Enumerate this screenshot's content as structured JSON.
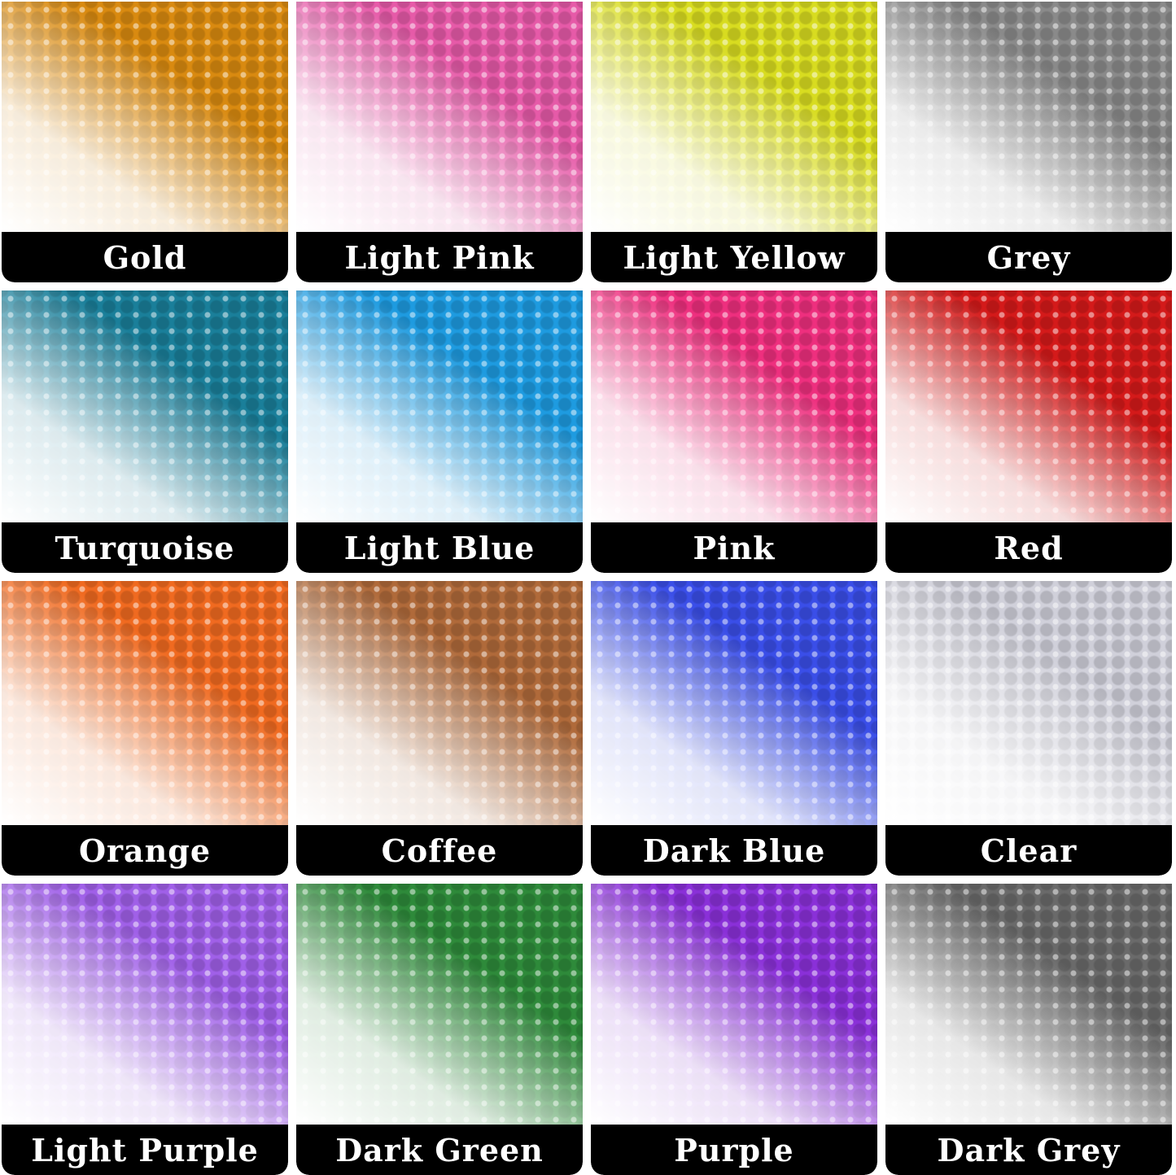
{
  "swatches": [
    {
      "label": "Gold",
      "color": "#d98a10"
    },
    {
      "label": "Light Pink",
      "color": "#e65aa8"
    },
    {
      "label": "Light Yellow",
      "color": "#d8dc20"
    },
    {
      "label": "Grey",
      "color": "#8a8a8a"
    },
    {
      "label": "Turquoise",
      "color": "#1a7f9a"
    },
    {
      "label": "Light Blue",
      "color": "#1e9be0"
    },
    {
      "label": "Pink",
      "color": "#ee2f7e"
    },
    {
      "label": "Red",
      "color": "#d41a1a"
    },
    {
      "label": "Orange",
      "color": "#f06a20"
    },
    {
      "label": "Coffee",
      "color": "#b06a3a"
    },
    {
      "label": "Dark Blue",
      "color": "#3a4ee8"
    },
    {
      "label": "Clear",
      "color": "#d0d0da"
    },
    {
      "label": "Light Purple",
      "color": "#a060e8"
    },
    {
      "label": "Dark Green",
      "color": "#2e8a3a"
    },
    {
      "label": "Purple",
      "color": "#8a30d8"
    },
    {
      "label": "Dark Grey",
      "color": "#6a6a6a"
    }
  ]
}
